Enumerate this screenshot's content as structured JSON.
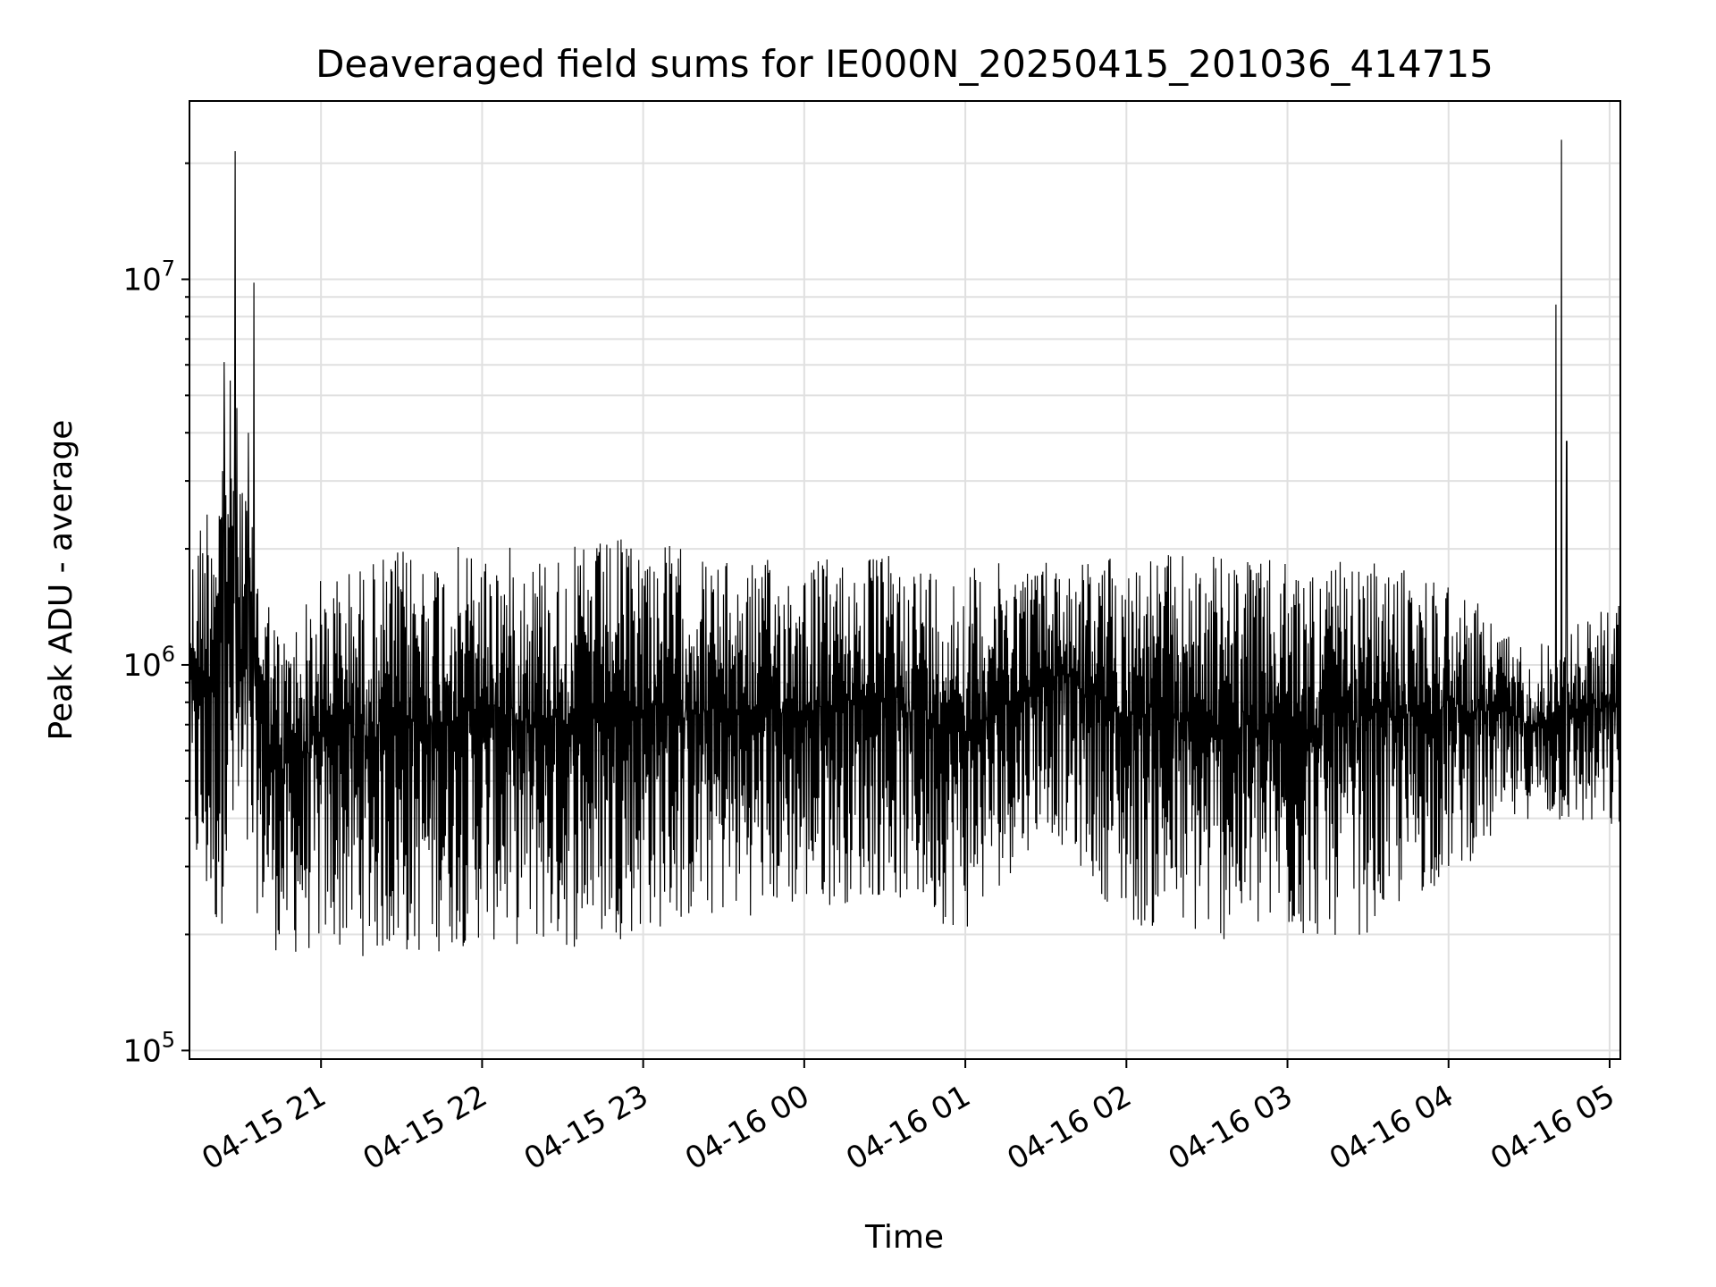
{
  "chart_data": {
    "type": "line",
    "title": "Deaveraged field sums for IE000N_20250415_201036_414715",
    "xlabel": "Time",
    "ylabel": "Peak ADU - average",
    "x_axis": {
      "kind": "time",
      "range": [
        "04-15 20:11",
        "04-16 05:04"
      ],
      "ticks": [
        "04-15 21",
        "04-15 22",
        "04-15 23",
        "04-16 00",
        "04-16 01",
        "04-16 02",
        "04-16 03",
        "04-16 04",
        "04-16 05"
      ],
      "tick_label_rotation_deg": 30
    },
    "y_axis": {
      "scale": "log",
      "range": [
        95000,
        29000000
      ],
      "ticks": [
        100000,
        1000000,
        10000000
      ],
      "tick_labels": [
        {
          "base": "10",
          "exp": "5"
        },
        {
          "base": "10",
          "exp": "6"
        },
        {
          "base": "10",
          "exp": "7"
        }
      ]
    },
    "grid": true,
    "line_color": "#000000",
    "series": [
      {
        "values_description_note": null,
        "envelope": [
          {
            "time": "04-15 20:11",
            "low": 300000,
            "high": 1900000
          },
          {
            "time": "04-15 20:20",
            "low": 180000,
            "high": 3500000
          },
          {
            "time": "04-15 20:27",
            "low": 240000,
            "high": 6000000
          },
          {
            "time": "04-15 20:33",
            "low": 250000,
            "high": 2500000
          },
          {
            "time": "04-15 20:45",
            "low": 170000,
            "high": 1200000
          },
          {
            "time": "04-15 21:00",
            "low": 180000,
            "high": 1700000
          },
          {
            "time": "04-15 21:30",
            "low": 170000,
            "high": 2000000
          },
          {
            "time": "04-15 22:00",
            "low": 190000,
            "high": 2050000
          },
          {
            "time": "04-15 22:30",
            "low": 180000,
            "high": 2000000
          },
          {
            "time": "04-15 23:00",
            "low": 200000,
            "high": 2200000
          },
          {
            "time": "04-15 23:30",
            "low": 220000,
            "high": 1850000
          },
          {
            "time": "04-16 00:00",
            "low": 230000,
            "high": 1900000
          },
          {
            "time": "04-16 00:30",
            "low": 250000,
            "high": 1950000
          },
          {
            "time": "04-16 01:00",
            "low": 200000,
            "high": 1800000
          },
          {
            "time": "04-16 01:30",
            "low": 380000,
            "high": 1900000
          },
          {
            "time": "04-16 02:00",
            "low": 210000,
            "high": 1950000
          },
          {
            "time": "04-16 02:30",
            "low": 190000,
            "high": 1950000
          },
          {
            "time": "04-16 03:00",
            "low": 190000,
            "high": 1850000
          },
          {
            "time": "04-16 03:30",
            "low": 200000,
            "high": 1850000
          },
          {
            "time": "04-16 04:00",
            "low": 280000,
            "high": 1700000
          },
          {
            "time": "04-16 04:30",
            "low": 400000,
            "high": 1100000
          },
          {
            "time": "04-16 05:04",
            "low": 350000,
            "high": 1500000
          }
        ],
        "spikes": [
          {
            "time": "04-15 20:28",
            "value": 21500000
          },
          {
            "time": "04-15 20:35",
            "value": 9800000
          },
          {
            "time": "04-15 20:24",
            "value": 6100000
          },
          {
            "time": "04-15 20:33",
            "value": 4000000
          },
          {
            "time": "04-16 04:42",
            "value": 23000000
          },
          {
            "time": "04-16 04:40",
            "value": 8600000
          },
          {
            "time": "04-16 04:44",
            "value": 3800000
          }
        ]
      }
    ]
  }
}
